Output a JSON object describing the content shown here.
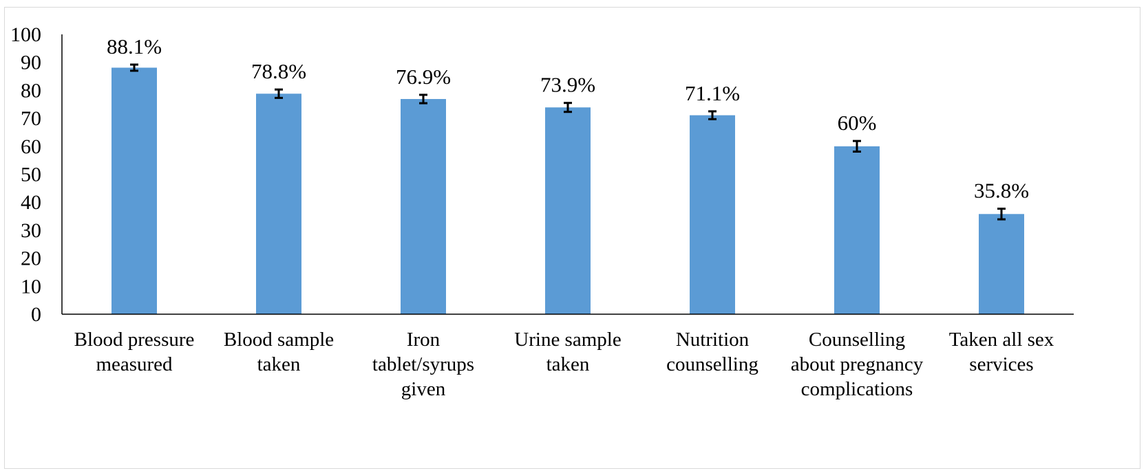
{
  "chart_data": {
    "type": "bar",
    "categories": [
      [
        "Blood pressure",
        "measured"
      ],
      [
        "Blood sample",
        "taken"
      ],
      [
        "Iron",
        "tablet/syrups",
        "given"
      ],
      [
        "Urine sample",
        "taken"
      ],
      [
        "Nutrition",
        "counselling"
      ],
      [
        "Counselling",
        "about pregnancy",
        "complications"
      ],
      [
        "Taken all sex",
        "services"
      ]
    ],
    "values": [
      88.1,
      78.8,
      76.9,
      73.9,
      71.1,
      60,
      35.8
    ],
    "data_labels": [
      "88.1%",
      "78.8%",
      "76.9%",
      "73.9%",
      "71.1%",
      "60%",
      "35.8%"
    ],
    "error_bars": [
      1.1,
      1.5,
      1.5,
      1.6,
      1.4,
      1.9,
      1.9
    ],
    "title": "",
    "xlabel": "",
    "ylabel": "",
    "ylim": [
      0,
      100
    ],
    "yticks": [
      "0",
      "10",
      "20",
      "30",
      "40",
      "50",
      "60",
      "70",
      "80",
      "90",
      "100"
    ],
    "grid": false,
    "legend": "none",
    "colors": {
      "bar": "#5b9bd5",
      "axis": "#000000",
      "error_bar": "#000000"
    }
  }
}
